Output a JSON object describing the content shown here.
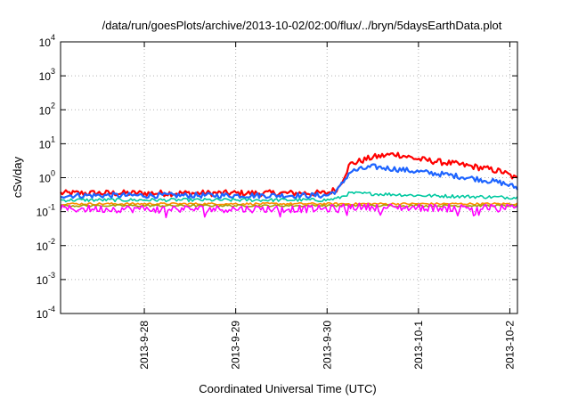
{
  "chart_data": {
    "type": "line",
    "title": "/data/run/goesPlots/archive/2013-10-02/02:00/flux/../bryn/5daysEarthData.plot",
    "xlabel": "Coordinated Universal Time (UTC)",
    "ylabel": "cSv/day",
    "y_scale": "log",
    "ylim": [
      0.0001,
      10000
    ],
    "y_ticks": [
      {
        "base": "10",
        "exp": "-4",
        "value": 0.0001
      },
      {
        "base": "10",
        "exp": "-3",
        "value": 0.001
      },
      {
        "base": "10",
        "exp": "-2",
        "value": 0.01
      },
      {
        "base": "10",
        "exp": "-1",
        "value": 0.1
      },
      {
        "base": "10",
        "exp": "0",
        "value": 1
      },
      {
        "base": "10",
        "exp": "1",
        "value": 10
      },
      {
        "base": "10",
        "exp": "2",
        "value": 100
      },
      {
        "base": "10",
        "exp": "3",
        "value": 1000
      },
      {
        "base": "10",
        "exp": "4",
        "value": 10000
      }
    ],
    "xlim": [
      "2013-09-27 02:00",
      "2013-10-02 02:00"
    ],
    "x_ticks": [
      {
        "label": "2013-9-28",
        "value": "2013-09-28 00:00"
      },
      {
        "label": "2013-9-29",
        "value": "2013-09-29 00:00"
      },
      {
        "label": "2013-9-30",
        "value": "2013-09-30 00:00"
      },
      {
        "label": "2013-10-1",
        "value": "2013-10-01 00:00"
      },
      {
        "label": "2013-10-2",
        "value": "2013-10-02 00:00"
      }
    ],
    "grid": true,
    "series": [
      {
        "color": "#ff0000",
        "points": [
          [
            "2013-09-27 02:00",
            0.35
          ],
          [
            "2013-09-30 00:00",
            0.35
          ],
          [
            "2013-09-30 03:00",
            0.5
          ],
          [
            "2013-09-30 06:00",
            2.5
          ],
          [
            "2013-09-30 12:00",
            4.0
          ],
          [
            "2013-09-30 18:00",
            5.0
          ],
          [
            "2013-10-01 00:00",
            3.5
          ],
          [
            "2013-10-01 08:00",
            2.7
          ],
          [
            "2013-10-01 16:00",
            2.0
          ],
          [
            "2013-10-01 22:00",
            1.5
          ],
          [
            "2013-10-02 02:00",
            0.9
          ]
        ]
      },
      {
        "color": "#1e64ff",
        "points": [
          [
            "2013-09-27 02:00",
            0.3
          ],
          [
            "2013-09-30 00:00",
            0.3
          ],
          [
            "2013-09-30 03:00",
            0.45
          ],
          [
            "2013-09-30 06:00",
            1.5
          ],
          [
            "2013-09-30 12:00",
            2.1
          ],
          [
            "2013-09-30 18:00",
            1.8
          ],
          [
            "2013-10-01 00:00",
            1.5
          ],
          [
            "2013-10-01 08:00",
            1.2
          ],
          [
            "2013-10-01 16:00",
            0.9
          ],
          [
            "2013-10-01 22:00",
            0.7
          ],
          [
            "2013-10-02 02:00",
            0.5
          ]
        ]
      },
      {
        "color": "#00c8a0",
        "points": [
          [
            "2013-09-27 02:00",
            0.22
          ],
          [
            "2013-09-30 00:00",
            0.22
          ],
          [
            "2013-09-30 03:00",
            0.25
          ],
          [
            "2013-09-30 06:00",
            0.35
          ],
          [
            "2013-09-30 18:00",
            0.32
          ],
          [
            "2013-10-01 00:00",
            0.3
          ],
          [
            "2013-10-01 12:00",
            0.28
          ],
          [
            "2013-10-02 02:00",
            0.26
          ]
        ]
      },
      {
        "color": "#ff8c00",
        "points": [
          [
            "2013-09-27 02:00",
            0.17
          ],
          [
            "2013-10-02 02:00",
            0.17
          ]
        ]
      },
      {
        "color": "#a0a000",
        "points": [
          [
            "2013-09-27 02:00",
            0.15
          ],
          [
            "2013-10-02 02:00",
            0.15
          ]
        ]
      },
      {
        "color": "#ff00ff",
        "points": [
          [
            "2013-09-27 02:00",
            0.12
          ],
          [
            "2013-09-30 00:00",
            0.12
          ],
          [
            "2013-09-30 06:00",
            0.14
          ],
          [
            "2013-10-01 00:00",
            0.13
          ],
          [
            "2013-10-02 02:00",
            0.13
          ]
        ]
      }
    ]
  }
}
